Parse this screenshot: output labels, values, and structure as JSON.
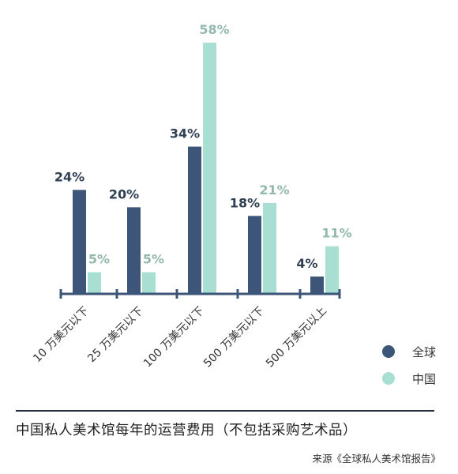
{
  "chart_data": {
    "type": "bar",
    "categories": [
      "10 万美元以下",
      "25 万美元以下",
      "100 万美元以下",
      "500 万美元以下",
      "500 万美元以上"
    ],
    "series": [
      {
        "name": "全球",
        "values": [
          24,
          20,
          34,
          18,
          4
        ],
        "labels": [
          "24%",
          "20%",
          "34%",
          "18%",
          "4%"
        ],
        "color": "#3d5578",
        "label_color": "#2f3f54"
      },
      {
        "name": "中国",
        "values": [
          5,
          5,
          58,
          21,
          11
        ],
        "labels": [
          "5%",
          "5%",
          "58%",
          "21%",
          "11%"
        ],
        "color": "#a8dfd2",
        "label_color": "#93b9ae"
      }
    ],
    "ylim": [
      0,
      58
    ],
    "grid": false,
    "legend_position": "bottom-right",
    "title": "中国私人美术馆每年的运营费用（不包括采购艺术品）",
    "source": "来源《全球私人美术馆报告》",
    "axis_color": "#3d5578"
  }
}
